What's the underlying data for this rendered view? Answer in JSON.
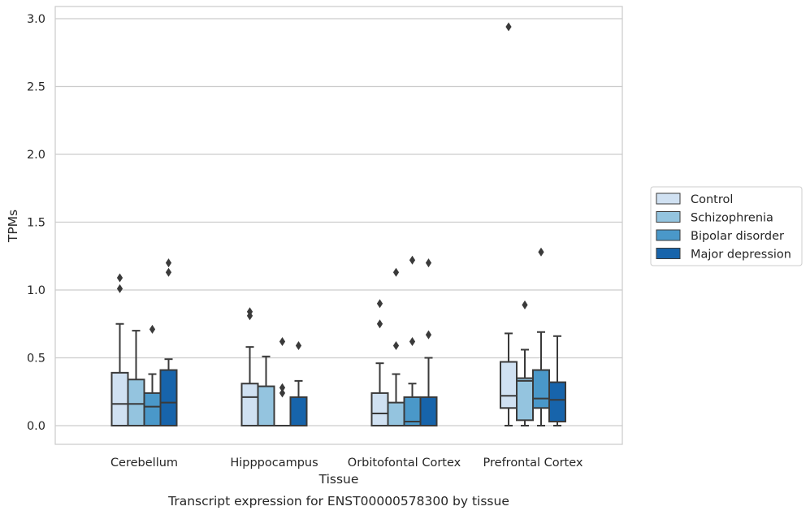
{
  "chart_data": {
    "type": "box",
    "title": "",
    "caption": "Transcript expression for ENST00000578300 by tissue",
    "xlabel": "Tissue",
    "ylabel": "TPMs",
    "ylim": [
      -0.14,
      3.08
    ],
    "yticks": [
      0.0,
      0.5,
      1.0,
      1.5,
      2.0,
      2.5,
      3.0
    ],
    "ytick_labels": [
      "0.0",
      "0.5",
      "1.0",
      "1.5",
      "2.0",
      "2.5",
      "3.0"
    ],
    "grid": "horizontal",
    "legend_position": "right",
    "categories": [
      "Cerebellum",
      "Hipppocampus",
      "Orbitofontal Cortex",
      "Prefrontal Cortex"
    ],
    "series": [
      {
        "name": "Control",
        "color": "#d0e1f2",
        "boxes": [
          {
            "whisker_low": 0.0,
            "q1": 0.0,
            "median": 0.16,
            "q3": 0.39,
            "whisker_high": 0.75,
            "outliers": [
              1.01,
              1.09
            ]
          },
          {
            "whisker_low": 0.0,
            "q1": 0.0,
            "median": 0.21,
            "q3": 0.31,
            "whisker_high": 0.58,
            "outliers": [
              0.81,
              0.84
            ]
          },
          {
            "whisker_low": 0.0,
            "q1": 0.0,
            "median": 0.09,
            "q3": 0.24,
            "whisker_high": 0.46,
            "outliers": [
              0.75,
              0.9
            ]
          },
          {
            "whisker_low": 0.0,
            "q1": 0.13,
            "median": 0.22,
            "q3": 0.47,
            "whisker_high": 0.68,
            "outliers": [
              2.94
            ]
          }
        ]
      },
      {
        "name": "Schizophrenia",
        "color": "#94c4df",
        "boxes": [
          {
            "whisker_low": 0.0,
            "q1": 0.0,
            "median": 0.16,
            "q3": 0.34,
            "whisker_high": 0.7,
            "outliers": []
          },
          {
            "whisker_low": 0.0,
            "q1": 0.0,
            "median": 0.0,
            "q3": 0.29,
            "whisker_high": 0.51,
            "outliers": []
          },
          {
            "whisker_low": 0.0,
            "q1": 0.0,
            "median": 0.0,
            "q3": 0.17,
            "whisker_high": 0.38,
            "outliers": [
              0.59,
              1.13
            ]
          },
          {
            "whisker_low": 0.0,
            "q1": 0.04,
            "median": 0.33,
            "q3": 0.35,
            "whisker_high": 0.56,
            "outliers": [
              0.89
            ]
          }
        ]
      },
      {
        "name": "Bipolar disorder",
        "color": "#4a98c9",
        "boxes": [
          {
            "whisker_low": 0.0,
            "q1": 0.0,
            "median": 0.14,
            "q3": 0.24,
            "whisker_high": 0.38,
            "outliers": [
              0.71
            ]
          },
          {
            "whisker_low": 0.0,
            "q1": 0.0,
            "median": 0.0,
            "q3": 0.0,
            "whisker_high": 0.0,
            "outliers": [
              0.24,
              0.28,
              0.62
            ]
          },
          {
            "whisker_low": 0.0,
            "q1": 0.0,
            "median": 0.03,
            "q3": 0.21,
            "whisker_high": 0.31,
            "outliers": [
              0.62,
              1.22
            ]
          },
          {
            "whisker_low": 0.0,
            "q1": 0.13,
            "median": 0.2,
            "q3": 0.41,
            "whisker_high": 0.69,
            "outliers": [
              1.28
            ]
          }
        ]
      },
      {
        "name": "Major depression",
        "color": "#1764ab",
        "boxes": [
          {
            "whisker_low": 0.0,
            "q1": 0.0,
            "median": 0.17,
            "q3": 0.41,
            "whisker_high": 0.49,
            "outliers": [
              1.13,
              1.2
            ]
          },
          {
            "whisker_low": 0.0,
            "q1": 0.0,
            "median": 0.0,
            "q3": 0.21,
            "whisker_high": 0.33,
            "outliers": [
              0.59
            ]
          },
          {
            "whisker_low": 0.0,
            "q1": 0.0,
            "median": 0.0,
            "q3": 0.21,
            "whisker_high": 0.5,
            "outliers": [
              0.67,
              1.2
            ]
          },
          {
            "whisker_low": 0.0,
            "q1": 0.03,
            "median": 0.19,
            "q3": 0.32,
            "whisker_high": 0.66,
            "outliers": []
          }
        ]
      }
    ]
  }
}
